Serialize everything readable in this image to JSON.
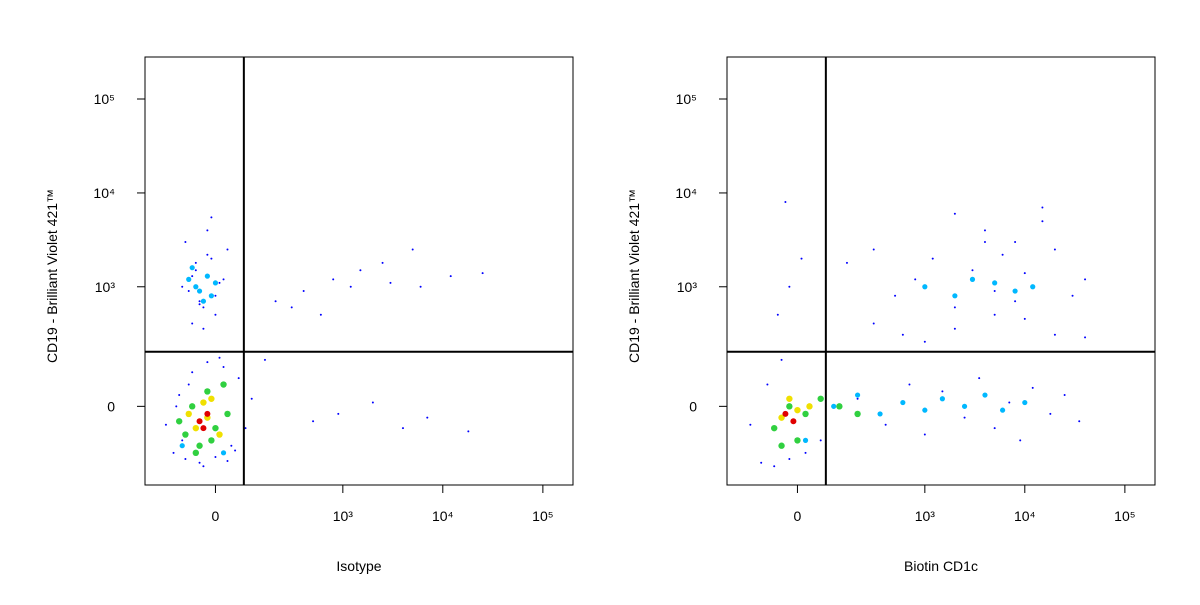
{
  "chart_data": [
    {
      "type": "scatter",
      "xlabel": "Isotype",
      "ylabel": "CD19 - Brilliant Violet 421™",
      "xscale": "biexponential",
      "yscale": "biexponential",
      "xlim": [
        -260,
        200000
      ],
      "ylim": [
        -360,
        280000
      ],
      "xticks": [
        0,
        {
          "value": 1000,
          "label": "10³"
        },
        {
          "value": 10000,
          "label": "10⁴"
        },
        {
          "value": 100000,
          "label": "10⁵"
        }
      ],
      "yticks": [
        0,
        {
          "value": 1000,
          "label": "10³"
        },
        {
          "value": 10000,
          "label": "10⁴"
        },
        {
          "value": 100000,
          "label": "10⁵"
        }
      ],
      "quadrant_x": 75,
      "quadrant_y": 190,
      "series": [
        {
          "color": "#0000ff",
          "x": [
            -120,
            -80,
            -40,
            0,
            40,
            80,
            -150,
            -100,
            -60,
            -20,
            20,
            60,
            100,
            -90,
            -30,
            30,
            -70,
            10,
            50,
            -110,
            -60,
            -30,
            0,
            -90,
            -50,
            -10,
            30,
            -80,
            -40,
            20,
            -70,
            -20,
            0,
            -50,
            -30,
            10,
            -60,
            -10,
            -40,
            -20,
            200,
            400,
            800,
            1500,
            3000,
            6000,
            12000,
            25000,
            500,
            900,
            2000,
            4000,
            7000,
            300,
            600,
            1200,
            2500,
            5000,
            18000,
            150
          ],
          "values": [
            -150,
            -180,
            -200,
            -170,
            -120,
            -60,
            -50,
            30,
            100,
            140,
            120,
            80,
            20,
            -100,
            -220,
            -190,
            60,
            160,
            -140,
            0,
            400,
            600,
            800,
            1000,
            1500,
            2000,
            2500,
            3000,
            700,
            1200,
            900,
            4000,
            500,
            1800,
            350,
            1100,
            1300,
            5500,
            650,
            2200,
            700,
            900,
            1200,
            1500,
            1100,
            1000,
            1300,
            1400,
            -40,
            -20,
            10,
            -60,
            -30,
            600,
            500,
            1000,
            1800,
            2500,
            -70,
            150
          ]
        },
        {
          "color": "#00b8ff",
          "x": [
            -40,
            -20,
            0,
            -60,
            -30,
            -50,
            -10,
            -70,
            -90,
            20
          ],
          "values": [
            900,
            1300,
            1100,
            1600,
            700,
            1000,
            800,
            1200,
            -120,
            -150
          ]
        },
        {
          "color": "#30d040",
          "x": [
            -80,
            -40,
            0,
            30,
            -60,
            -20,
            20,
            -100,
            -50,
            -10
          ],
          "values": [
            -80,
            -120,
            -60,
            -20,
            0,
            40,
            60,
            -40,
            -150,
            -100
          ]
        },
        {
          "color": "#f0e000",
          "x": [
            -50,
            -20,
            10,
            -30,
            -70,
            -10
          ],
          "values": [
            -60,
            -30,
            -80,
            10,
            -20,
            20
          ]
        },
        {
          "color": "#e00000",
          "x": [
            -40,
            -20,
            -30
          ],
          "values": [
            -40,
            -20,
            -60
          ]
        }
      ]
    },
    {
      "type": "scatter",
      "xlabel": "Biotin CD1c",
      "ylabel": "CD19 - Brilliant Violet 421™",
      "xscale": "biexponential",
      "yscale": "biexponential",
      "xlim": [
        -260,
        200000
      ],
      "ylim": [
        -360,
        280000
      ],
      "xticks": [
        0,
        {
          "value": 1000,
          "label": "10³"
        },
        {
          "value": 10000,
          "label": "10⁴"
        },
        {
          "value": 100000,
          "label": "10⁵"
        }
      ],
      "yticks": [
        0,
        {
          "value": 1000,
          "label": "10³"
        },
        {
          "value": 10000,
          "label": "10⁴"
        },
        {
          "value": 100000,
          "label": "10⁵"
        }
      ],
      "quadrant_x": 75,
      "quadrant_y": 190,
      "series": [
        {
          "color": "#0000ff",
          "x": [
            -100,
            -60,
            -20,
            20,
            60,
            -140,
            -80,
            -40,
            -50,
            -20,
            10,
            -30,
            150,
            300,
            500,
            800,
            1200,
            2000,
            3000,
            4000,
            5000,
            6000,
            8000,
            10000,
            15000,
            20000,
            30000,
            40000,
            200,
            400,
            700,
            1000,
            1500,
            2500,
            3500,
            5000,
            7000,
            9000,
            12000,
            18000,
            25000,
            35000,
            2000,
            4000,
            8000,
            15000,
            300,
            600,
            1000,
            2000,
            5000,
            10000,
            20000,
            40000
          ],
          "values": [
            -200,
            -220,
            -180,
            -150,
            -100,
            -50,
            60,
            150,
            500,
            1000,
            2000,
            8000,
            1800,
            2500,
            800,
            1200,
            2000,
            600,
            1500,
            3000,
            900,
            2200,
            700,
            1400,
            5000,
            2500,
            800,
            1200,
            20,
            -50,
            60,
            -80,
            40,
            -30,
            80,
            -60,
            10,
            -100,
            50,
            -20,
            30,
            -40,
            6000,
            4000,
            3000,
            7000,
            400,
            300,
            250,
            350,
            500,
            450,
            300,
            280
          ]
        },
        {
          "color": "#00b8ff",
          "x": [
            100,
            200,
            350,
            600,
            1000,
            1500,
            2500,
            4000,
            6000,
            10000,
            1000,
            2000,
            3000,
            5000,
            8000,
            12000,
            20
          ],
          "values": [
            0,
            30,
            -20,
            10,
            -10,
            20,
            0,
            30,
            -10,
            10,
            1000,
            800,
            1200,
            1100,
            900,
            1000,
            -100
          ]
        },
        {
          "color": "#30d040",
          "x": [
            -60,
            -20,
            20,
            60,
            -40,
            0,
            120,
            200
          ],
          "values": [
            -60,
            0,
            -20,
            20,
            -120,
            -100,
            0,
            -20
          ]
        },
        {
          "color": "#f0e000",
          "x": [
            -40,
            0,
            -20,
            30
          ],
          "values": [
            -30,
            -10,
            20,
            0
          ]
        },
        {
          "color": "#e00000",
          "x": [
            -30,
            -10
          ],
          "values": [
            -20,
            -40
          ]
        }
      ]
    }
  ]
}
